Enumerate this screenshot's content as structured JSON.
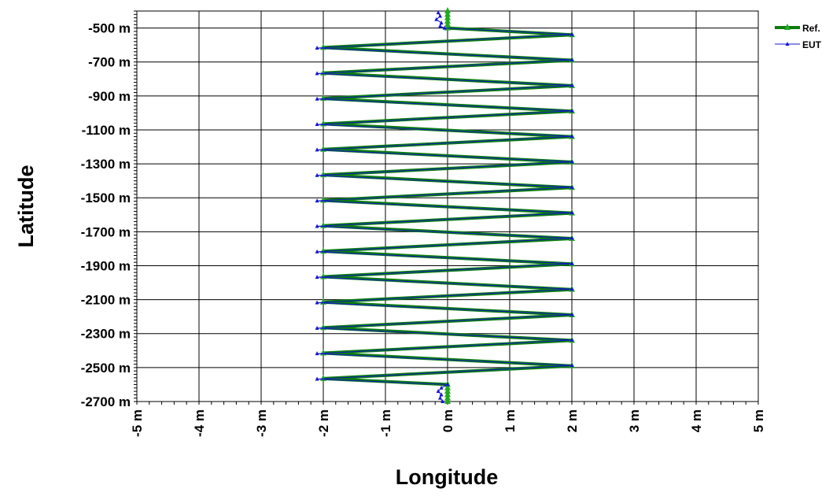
{
  "chart_data": {
    "type": "line",
    "xlabel": "Longitude",
    "ylabel": "Latitude",
    "xlim": [
      -5,
      5
    ],
    "ylim": [
      -2700,
      -400
    ],
    "x_ticks": [
      "-5 m",
      "-4 m",
      "-3 m",
      "-2 m",
      "-1 m",
      "0 m",
      "1 m",
      "2 m",
      "3 m",
      "4 m",
      "5 m"
    ],
    "y_ticks": [
      "-500 m",
      "-700 m",
      "-900 m",
      "-1100 m",
      "-1300 m",
      "-1500 m",
      "-1700 m",
      "-1900 m",
      "-2100 m",
      "-2300 m",
      "-2500 m",
      "-2700 m"
    ],
    "grid": true,
    "legend_position": "top-right",
    "colors": {
      "ref": "#0a7d0a",
      "eut": "#1414d2",
      "ref_marker": "#22aa22"
    },
    "series": [
      {
        "name": "Ref.",
        "x": [],
        "y": []
      },
      {
        "name": "EUT",
        "x": [],
        "y": []
      }
    ]
  }
}
